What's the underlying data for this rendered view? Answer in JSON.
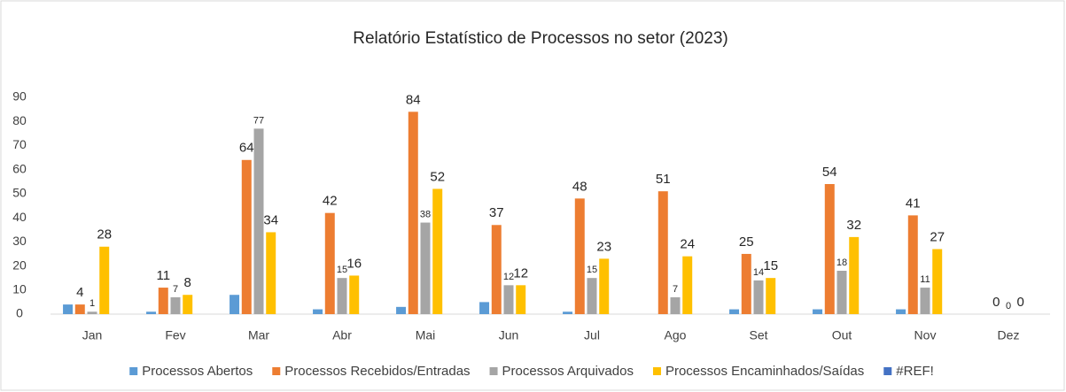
{
  "chart_data": {
    "type": "bar",
    "title": "Relatório Estatístico de Processos no setor (2023)",
    "categories": [
      "Jan",
      "Fev",
      "Mar",
      "Abr",
      "Mai",
      "Jun",
      "Jul",
      "Ago",
      "Set",
      "Out",
      "Nov",
      "Dez"
    ],
    "series": [
      {
        "name": "Processos Abertos",
        "color": "#5b9bd5",
        "values": [
          4,
          1,
          8,
          2,
          3,
          5,
          1,
          0,
          2,
          2,
          2,
          0
        ],
        "data_labels": false
      },
      {
        "name": "Processos Recebidos/Entradas",
        "color": "#ed7d31",
        "values": [
          4,
          11,
          64,
          42,
          84,
          37,
          48,
          51,
          25,
          54,
          41,
          0
        ],
        "data_labels": true
      },
      {
        "name": "Processos Arquivados",
        "color": "#a5a5a5",
        "values": [
          1,
          7,
          77,
          15,
          38,
          12,
          15,
          7,
          14,
          18,
          11,
          0
        ],
        "data_labels": true
      },
      {
        "name": "Processos Encaminhados/Saídas",
        "color": "#ffc000",
        "values": [
          28,
          8,
          34,
          16,
          52,
          12,
          23,
          24,
          15,
          32,
          27,
          0
        ],
        "data_labels": true
      },
      {
        "name": "#REF!",
        "color": "#4472c4",
        "values": [
          null,
          null,
          null,
          null,
          null,
          null,
          null,
          null,
          null,
          null,
          null,
          null
        ],
        "data_labels": false
      }
    ],
    "ylim": [
      0,
      90
    ],
    "yticks": [
      0,
      10,
      20,
      30,
      40,
      50,
      60,
      70,
      80,
      90
    ],
    "grid": false,
    "legend": "bottom"
  }
}
